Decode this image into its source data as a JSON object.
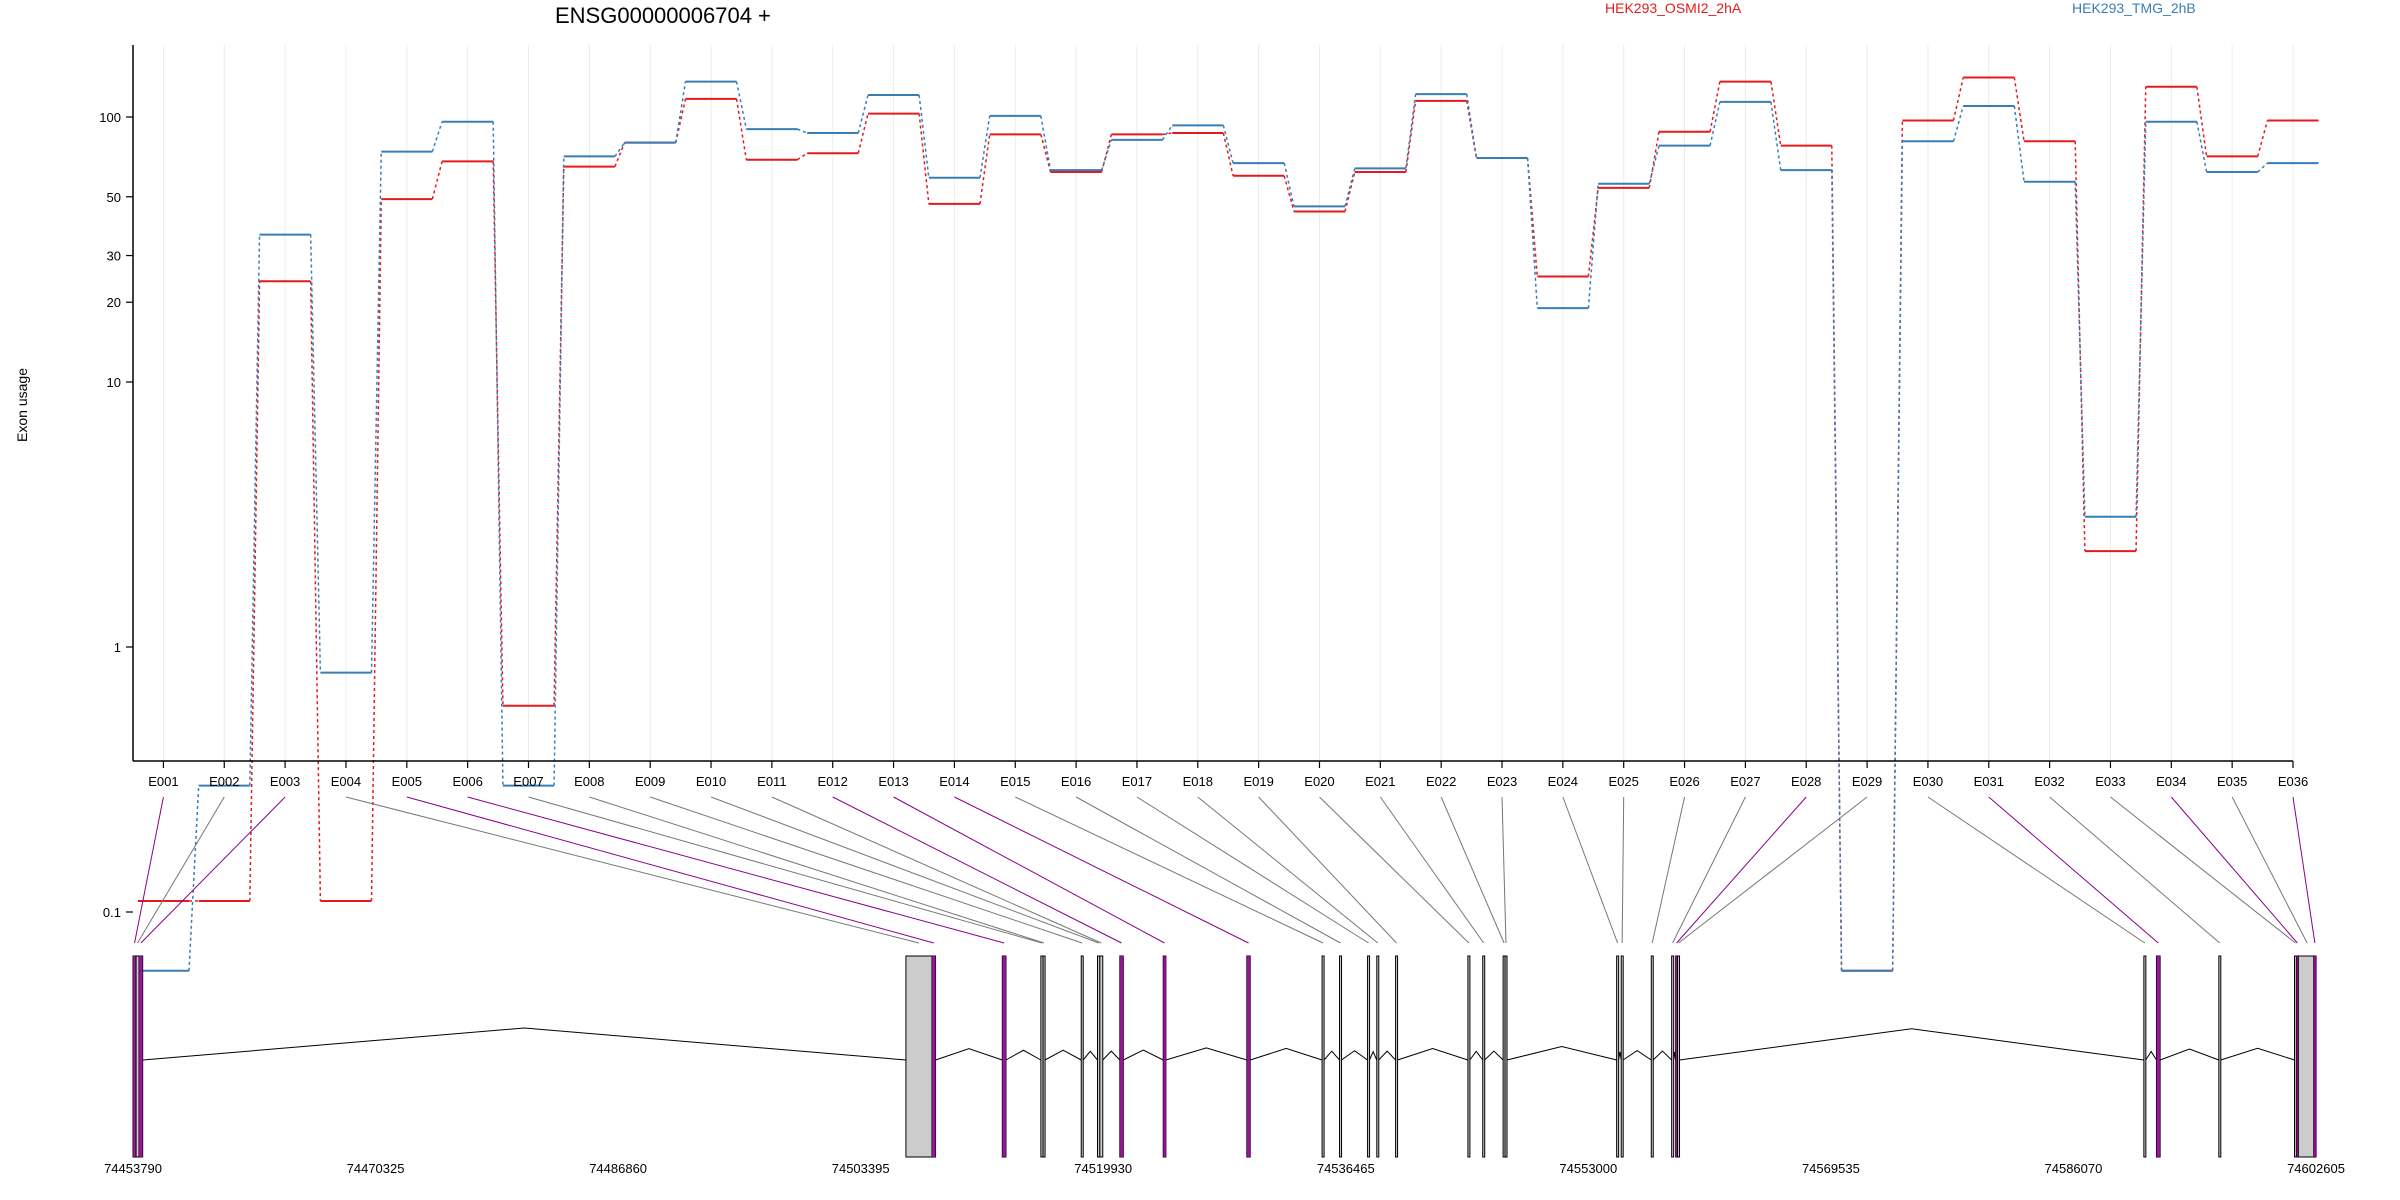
{
  "chart_data": {
    "type": "line",
    "title": "ENSG00000006704 +",
    "ylabel": "Exon usage",
    "xlabel": "",
    "y_scale": "log",
    "grid": "vertical, light",
    "legend_position": "top-right",
    "y_ticks": [
      {
        "value": 0.1,
        "label": "0.1"
      },
      {
        "value": 1,
        "label": "1"
      },
      {
        "value": 10,
        "label": "10"
      },
      {
        "value": 20,
        "label": "20"
      },
      {
        "value": 30,
        "label": "30"
      },
      {
        "value": 50,
        "label": "50"
      },
      {
        "value": 100,
        "label": "100"
      }
    ],
    "categories": [
      "E001",
      "E002",
      "E003",
      "E004",
      "E005",
      "E006",
      "E007",
      "E008",
      "E009",
      "E010",
      "E011",
      "E012",
      "E013",
      "E014",
      "E015",
      "E016",
      "E017",
      "E018",
      "E019",
      "E020",
      "E021",
      "E022",
      "E023",
      "E024",
      "E025",
      "E026",
      "E027",
      "E028",
      "E029",
      "E030",
      "E031",
      "E032",
      "E033",
      "E034",
      "E035",
      "E036"
    ],
    "series": [
      {
        "name": "HEK293_OSMI2_2hA",
        "color": "#e41a1c",
        "values": [
          0.11,
          0.11,
          24,
          0.11,
          49,
          68,
          0.6,
          65,
          80,
          117,
          69,
          73,
          103,
          47,
          86,
          62,
          86,
          87,
          60,
          44,
          62,
          115,
          70,
          25,
          54,
          88,
          136,
          78,
          0.06,
          97,
          141,
          81,
          2.3,
          130,
          71,
          97
        ]
      },
      {
        "name": "HEK293_TMG_2hB",
        "color": "#377eb8",
        "values": [
          0.06,
          0.3,
          36,
          0.8,
          74,
          96,
          0.3,
          71,
          80,
          136,
          90,
          87,
          121,
          59,
          101,
          63,
          82,
          93,
          67,
          46,
          64,
          122,
          70,
          19,
          56,
          78,
          114,
          63,
          0.06,
          81,
          110,
          57,
          3.1,
          96,
          62,
          67
        ]
      }
    ]
  },
  "gene_model": {
    "coordinate_ticks": [
      "74453790",
      "74470325",
      "74486860",
      "74503395",
      "74519930",
      "74536465",
      "74553000",
      "74569535",
      "74586070",
      "74602605"
    ],
    "coordinate_range": [
      74453790,
      74602605
    ],
    "exon_color": "#999999",
    "highlight_color": "#8b008b",
    "exons": [
      {
        "id": "E001",
        "start": 74453790,
        "end": 74454000,
        "hl": true
      },
      {
        "id": "E002",
        "start": 74454000,
        "end": 74454200,
        "hl": false
      },
      {
        "id": "E003",
        "start": 74454200,
        "end": 74454450,
        "hl": true
      },
      {
        "id": "E004",
        "start": 74506480,
        "end": 74508260,
        "hl": false
      },
      {
        "id": "E005",
        "start": 74508260,
        "end": 74508500,
        "hl": true
      },
      {
        "id": "E006",
        "start": 74513050,
        "end": 74513300,
        "hl": true
      },
      {
        "id": "E007",
        "start": 74515680,
        "end": 74515830,
        "hl": false
      },
      {
        "id": "E008",
        "start": 74515830,
        "end": 74515960,
        "hl": false
      },
      {
        "id": "E009",
        "start": 74518430,
        "end": 74518560,
        "hl": false
      },
      {
        "id": "E010",
        "start": 74519540,
        "end": 74519700,
        "hl": false
      },
      {
        "id": "E011",
        "start": 74519700,
        "end": 74519900,
        "hl": false
      },
      {
        "id": "E012",
        "start": 74521060,
        "end": 74521300,
        "hl": true
      },
      {
        "id": "E013",
        "start": 74524020,
        "end": 74524200,
        "hl": true
      },
      {
        "id": "E014",
        "start": 74529720,
        "end": 74529950,
        "hl": true
      },
      {
        "id": "E015",
        "start": 74534850,
        "end": 74534980,
        "hl": false
      },
      {
        "id": "E016",
        "start": 74536040,
        "end": 74536170,
        "hl": false
      },
      {
        "id": "E017",
        "start": 74537950,
        "end": 74538080,
        "hl": false
      },
      {
        "id": "E018",
        "start": 74538580,
        "end": 74538710,
        "hl": false
      },
      {
        "id": "E019",
        "start": 74539860,
        "end": 74539990,
        "hl": false
      },
      {
        "id": "E020",
        "start": 74544790,
        "end": 74544920,
        "hl": false
      },
      {
        "id": "E021",
        "start": 74545800,
        "end": 74545930,
        "hl": false
      },
      {
        "id": "E022",
        "start": 74547190,
        "end": 74547320,
        "hl": false
      },
      {
        "id": "E023",
        "start": 74547320,
        "end": 74547450,
        "hl": false
      },
      {
        "id": "E024",
        "start": 74554930,
        "end": 74555060,
        "hl": false
      },
      {
        "id": "E025",
        "start": 74555240,
        "end": 74555370,
        "hl": false
      },
      {
        "id": "E026",
        "start": 74557290,
        "end": 74557420,
        "hl": false
      },
      {
        "id": "E027",
        "start": 74558680,
        "end": 74558810,
        "hl": false
      },
      {
        "id": "E028",
        "start": 74558950,
        "end": 74559080,
        "hl": true
      },
      {
        "id": "E029",
        "start": 74559080,
        "end": 74559210,
        "hl": false
      },
      {
        "id": "E030",
        "start": 74590870,
        "end": 74591000,
        "hl": false
      },
      {
        "id": "E031",
        "start": 74591730,
        "end": 74591980,
        "hl": true
      },
      {
        "id": "E032",
        "start": 74595980,
        "end": 74596110,
        "hl": false
      },
      {
        "id": "E033",
        "start": 74601140,
        "end": 74601270,
        "hl": false
      },
      {
        "id": "E034",
        "start": 74601270,
        "end": 74601400,
        "hl": true
      },
      {
        "id": "E035",
        "start": 74601400,
        "end": 74602600,
        "hl": false
      },
      {
        "id": "E036",
        "start": 74602450,
        "end": 74602605,
        "hl": true
      }
    ]
  }
}
